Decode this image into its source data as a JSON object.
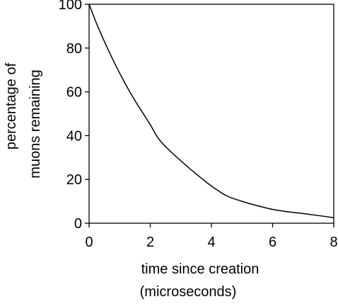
{
  "chart_data": {
    "type": "line",
    "title": "",
    "xlabel": "time since creation",
    "xlabel_unit": "(microseconds)",
    "ylabel": "percentage of",
    "ylabel_line2": "muons remaining",
    "xlim": [
      0,
      8
    ],
    "ylim": [
      0,
      100
    ],
    "x_ticks": [
      0,
      2,
      4,
      6,
      8
    ],
    "y_ticks": [
      0,
      20,
      40,
      60,
      80,
      100
    ],
    "grid": false,
    "series": [
      {
        "x": [
          0,
          0.25,
          0.5,
          0.75,
          1.0,
          1.25,
          1.5,
          1.75,
          2.0,
          2.25,
          2.5,
          3.0,
          3.5,
          4.0,
          4.5,
          5.0,
          5.5,
          6.0,
          6.5,
          7.0,
          7.5,
          8.0
        ],
        "y": [
          100,
          91,
          83,
          75.5,
          68.5,
          62,
          56,
          50.5,
          45,
          39,
          35,
          28.5,
          22.5,
          17,
          12.5,
          10,
          8,
          6.3,
          5.2,
          4.4,
          3.5,
          2.5
        ]
      }
    ]
  }
}
